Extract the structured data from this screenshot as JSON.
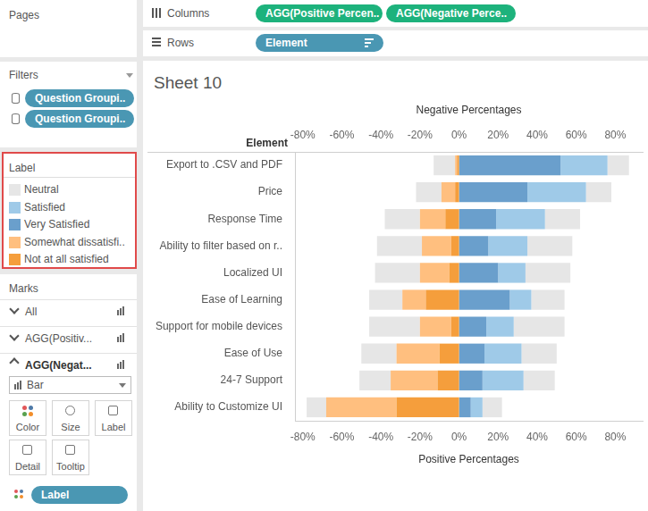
{
  "chart_data": {
    "type": "bar",
    "title": "Sheet 10",
    "orientation": "horizontal",
    "stacked": true,
    "grid": false,
    "ylabel": "Element",
    "xlabel": "Positive Percentages",
    "x2label": "Negative Percentages",
    "categories": [
      "Export to .CSV and PDF",
      "Price",
      "Response Time",
      "Ability to filter based on r..",
      "Localized UI",
      "Ease of Learning",
      "Support for mobile devices",
      "Ease of Use",
      "24-7 Support",
      "Ability to Customize UI"
    ],
    "xlim": [
      -84,
      94
    ],
    "xticks": [
      {
        "value": -80,
        "label": "-80%"
      },
      {
        "value": -60,
        "label": "-60%"
      },
      {
        "value": -40,
        "label": "-40%"
      },
      {
        "value": -20,
        "label": "-20%"
      },
      {
        "value": 0,
        "label": "0%"
      },
      {
        "value": 20,
        "label": "20%"
      },
      {
        "value": 40,
        "label": "40%"
      },
      {
        "value": 60,
        "label": "60%"
      },
      {
        "value": 80,
        "label": "80%"
      }
    ],
    "series": [
      {
        "name": "Neutral",
        "color": "#e6e6e6",
        "values": [
          11,
          13,
          18,
          23,
          23,
          17,
          26,
          18,
          16,
          10
        ],
        "negative_values": [
          -11,
          -13,
          -18,
          -23,
          -23,
          -17,
          -26,
          -18,
          -16,
          -10
        ]
      },
      {
        "name": "Satisfied",
        "color": "#9fcae8",
        "values": [
          24,
          30,
          25,
          20,
          14,
          11,
          14,
          19,
          21,
          6
        ]
      },
      {
        "name": "Very Satisfied",
        "color": "#6a9fcc",
        "values": [
          52,
          35,
          19,
          15,
          20,
          26,
          14,
          13,
          12,
          6
        ]
      },
      {
        "name": "Somewhat dissatisfi..",
        "color": "#ffbf7f",
        "values": [
          -1,
          -7,
          -13,
          -15,
          -15,
          -12,
          -16,
          -22,
          -24,
          -36
        ]
      },
      {
        "name": "Not at all satisfied",
        "color": "#f59e3c",
        "values": [
          -1,
          -2,
          -7,
          -4,
          -5,
          -17,
          -4,
          -10,
          -11,
          -32
        ]
      }
    ]
  },
  "interface": {
    "pages": {
      "title": "Pages"
    },
    "columns": {
      "title": "Columns",
      "pills": [
        "AGG(Positive Percen..",
        "AGG(Negative Perce.."
      ]
    },
    "rows": {
      "title": "Rows",
      "pills": [
        "Element"
      ]
    },
    "filters": {
      "title": "Filters",
      "pills": [
        "Question Groupi..",
        "Question Groupi.."
      ]
    },
    "legend_title": "Label",
    "marks": {
      "title": "Marks",
      "layers": [
        "All",
        "AGG(Positiv...",
        "AGG(Negat..."
      ],
      "mark_type": "Bar",
      "buttons": [
        "Color",
        "Size",
        "Label",
        "Detail",
        "Tooltip"
      ],
      "pills": [
        "Label"
      ]
    }
  }
}
